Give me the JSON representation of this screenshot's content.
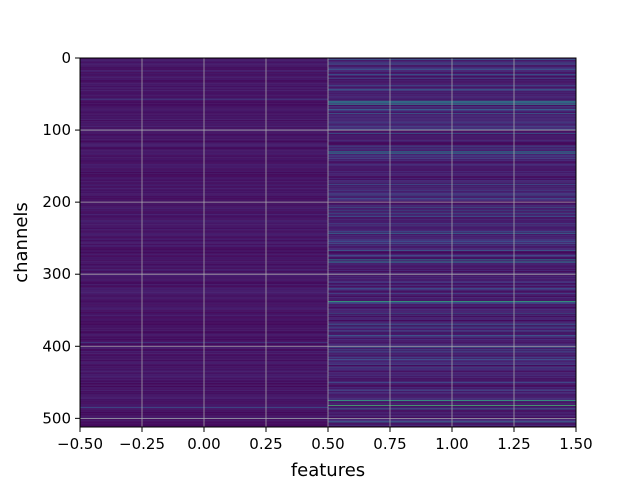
{
  "chart_data": {
    "type": "heatmap",
    "title": "",
    "xlabel": "features",
    "ylabel": "channels",
    "xlim": [
      -0.5,
      1.5
    ],
    "ylim": [
      512,
      0
    ],
    "x_ticks": [
      -0.5,
      -0.25,
      0.0,
      0.25,
      0.5,
      0.75,
      1.0,
      1.25,
      1.5
    ],
    "x_tick_labels": [
      "−0.50",
      "−0.25",
      "0.00",
      "0.25",
      "0.50",
      "0.75",
      "1.00",
      "1.25",
      "1.50"
    ],
    "y_ticks": [
      0,
      100,
      200,
      300,
      400,
      500
    ],
    "y_tick_labels": [
      "0",
      "100",
      "200",
      "300",
      "400",
      "500"
    ],
    "grid": true,
    "colormap": "viridis",
    "columns": [
      0,
      1
    ],
    "rows": 512,
    "background_level": [
      0.02,
      0.1
    ],
    "bright_rows_feature_1": [
      {
        "channel": 7,
        "level": 0.3
      },
      {
        "channel": 15,
        "level": 0.2
      },
      {
        "channel": 28,
        "level": 0.25
      },
      {
        "channel": 45,
        "level": 0.2
      },
      {
        "channel": 60,
        "level": 0.5
      },
      {
        "channel": 62,
        "level": 0.45
      },
      {
        "channel": 64,
        "level": 0.55
      },
      {
        "channel": 95,
        "level": 0.2
      },
      {
        "channel": 105,
        "level": 0.3
      },
      {
        "channel": 130,
        "level": 0.4
      },
      {
        "channel": 132,
        "level": 0.5
      },
      {
        "channel": 175,
        "level": 0.3
      },
      {
        "channel": 195,
        "level": 0.25
      },
      {
        "channel": 207,
        "level": 0.3
      },
      {
        "channel": 220,
        "level": 0.25
      },
      {
        "channel": 243,
        "level": 0.4
      },
      {
        "channel": 258,
        "level": 0.3
      },
      {
        "channel": 280,
        "level": 0.45
      },
      {
        "channel": 283,
        "level": 0.5
      },
      {
        "channel": 300,
        "level": 0.2
      },
      {
        "channel": 320,
        "level": 0.25
      },
      {
        "channel": 338,
        "level": 0.65
      },
      {
        "channel": 355,
        "level": 0.3
      },
      {
        "channel": 380,
        "level": 0.2
      },
      {
        "channel": 400,
        "level": 0.3
      },
      {
        "channel": 430,
        "level": 0.25
      },
      {
        "channel": 475,
        "level": 0.65
      },
      {
        "channel": 482,
        "level": 0.7
      },
      {
        "channel": 505,
        "level": 0.4
      }
    ],
    "bright_rows_feature_0": [
      {
        "channel": 57,
        "level": 0.2
      },
      {
        "channel": 100,
        "level": 0.15
      },
      {
        "channel": 395,
        "level": 0.2
      },
      {
        "channel": 485,
        "level": 0.25
      },
      {
        "channel": 500,
        "level": 0.2
      }
    ]
  }
}
